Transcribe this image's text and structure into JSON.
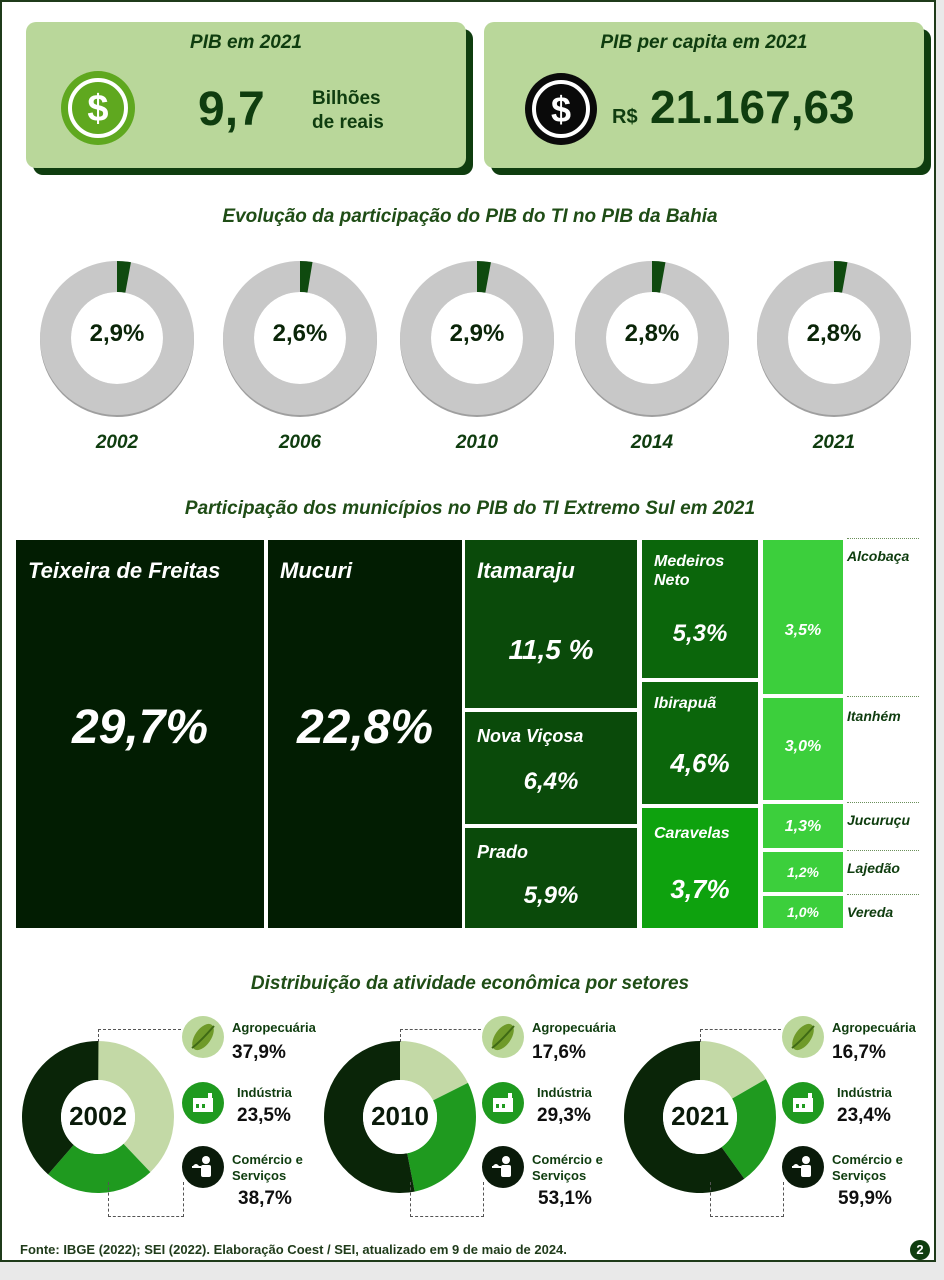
{
  "cards": {
    "gdp": {
      "title": "PIB em 2021",
      "value": "9,7",
      "unit_line1": "Bilhões",
      "unit_line2": "de reais",
      "icon": "dollar-icon"
    },
    "per_capita": {
      "title": "PIB per capita em 2021",
      "currency": "R$",
      "value": "21.167,63",
      "icon": "dollar-icon"
    }
  },
  "evolution": {
    "title": "Evolução da participação do PIB do TI no PIB da Bahia",
    "items": [
      {
        "year": "2002",
        "label": "2,9%",
        "value": 2.9
      },
      {
        "year": "2006",
        "label": "2,6%",
        "value": 2.6
      },
      {
        "year": "2010",
        "label": "2,9%",
        "value": 2.9
      },
      {
        "year": "2014",
        "label": "2,8%",
        "value": 2.8
      },
      {
        "year": "2021",
        "label": "2,8%",
        "value": 2.8
      }
    ]
  },
  "treemap": {
    "title": "Participação dos municípios no PIB do TI Extremo Sul em 2021",
    "items": [
      {
        "name": "Teixeira de Freitas",
        "label": "29,7%",
        "value": 29.7
      },
      {
        "name": "Mucuri",
        "label": "22,8%",
        "value": 22.8
      },
      {
        "name": "Itamaraju",
        "label": "11,5 %",
        "value": 11.5
      },
      {
        "name": "Nova Viçosa",
        "label": "6,4%",
        "value": 6.4
      },
      {
        "name": "Prado",
        "label": "5,9%",
        "value": 5.9
      },
      {
        "name": "Medeiros Neto",
        "label": "5,3%",
        "value": 5.3
      },
      {
        "name": "Ibirapuã",
        "label": "4,6%",
        "value": 4.6
      },
      {
        "name": "Caravelas",
        "label": "3,7%",
        "value": 3.7
      },
      {
        "name": "Alcobaça",
        "label": "3,5%",
        "value": 3.5
      },
      {
        "name": "Itanhém",
        "label": "3,0%",
        "value": 3.0
      },
      {
        "name": "Jucuruçu",
        "label": "1,3%",
        "value": 1.3
      },
      {
        "name": "Lajedão",
        "label": "1,2%",
        "value": 1.2
      },
      {
        "name": "Vereda",
        "label": "1,0%",
        "value": 1.0
      }
    ]
  },
  "sectors": {
    "title": "Distribuição da atividade econômica por setores",
    "labels": {
      "agro": "Agropecuária",
      "industry": "Indústria",
      "commerce_l1": "Comércio e",
      "commerce_l2": "Serviços"
    },
    "years": [
      {
        "year": "2002",
        "agro": "37,9%",
        "industry": "23,5%",
        "commerce": "38,7%",
        "agro_v": 37.9,
        "industry_v": 23.5,
        "commerce_v": 38.7
      },
      {
        "year": "2010",
        "agro": "17,6%",
        "industry": "29,3%",
        "commerce": "53,1%",
        "agro_v": 17.6,
        "industry_v": 29.3,
        "commerce_v": 53.1
      },
      {
        "year": "2021",
        "agro": "16,7%",
        "industry": "23,4%",
        "commerce": "59,9%",
        "agro_v": 16.7,
        "industry_v": 23.4,
        "commerce_v": 59.9
      }
    ],
    "colors": {
      "agro": "#c3d9a6",
      "industry": "#1f9a1f",
      "commerce": "#0a2508"
    }
  },
  "footer": {
    "source": "Fonte: IBGE (2022); SEI (2022). Elaboração Coest / SEI, atualizado em 9 de maio de 2024.",
    "page": "2"
  },
  "colors": {
    "dark": "#0a2508",
    "accent": "#0f3d0f",
    "card": "#b9d79a",
    "donut_gray": "#c8c8c8"
  }
}
